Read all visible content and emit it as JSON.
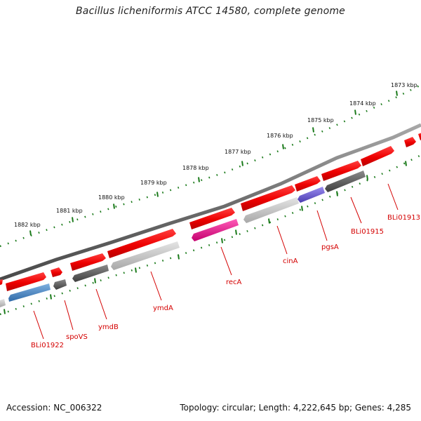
{
  "title": "Bacillus licheniformis ATCC 14580, complete genome",
  "footer": {
    "accession": "Accession: NC_006322",
    "summary": "Topology: circular; Length: 4,222,645 bp; Genes: 4,285"
  },
  "ruler": [
    "1873 kbp",
    "1874 kbp",
    "1875 kbp",
    "1876 kbp",
    "1877 kbp",
    "1878 kbp",
    "1879 kbp",
    "1880 kbp",
    "1881 kbp",
    "1882 kbp"
  ],
  "gene_labels": [
    "BLi01913",
    "BLi01915",
    "pgsA",
    "cinA",
    "recA",
    "ymdA",
    "ymdB",
    "spoVS",
    "BLi01922"
  ],
  "colors": {
    "backbone": "#7a7a7a",
    "forward_gene": "#ee0000",
    "label": "#d40000",
    "tick": "#1a7a1a",
    "blue_gene": "#3f7fbf",
    "magenta_gene": "#e0188c",
    "purple_gene": "#6a5acd",
    "gray_gene": "#c8c8c8",
    "dark_gene": "#5a5a5a"
  }
}
